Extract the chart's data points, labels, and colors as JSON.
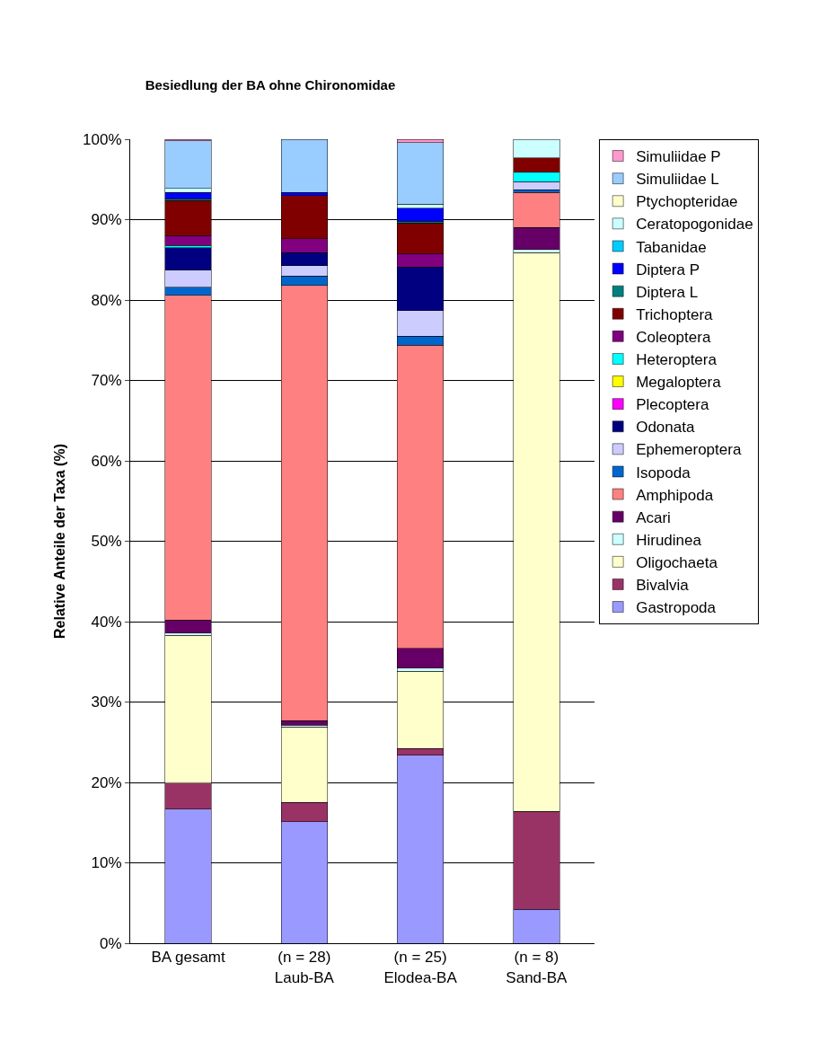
{
  "chart_data": {
    "type": "bar",
    "stacked": true,
    "title": "Besiedlung der BA ohne Chironomidae",
    "ylabel": "Relative Anteile der Taxa (%)",
    "categories": [
      "BA gesamt",
      "(n = 28)\nLaub-BA",
      "(n = 25)\nElodea-BA",
      "(n = 8)\nSand-BA"
    ],
    "series": [
      {
        "name": "Gastropoda",
        "color": "#9999ff",
        "values": [
          16.7,
          15.1,
          23.4,
          4.2
        ]
      },
      {
        "name": "Bivalvia",
        "color": "#993366",
        "values": [
          3.2,
          2.4,
          0.8,
          12.2
        ]
      },
      {
        "name": "Oligochaeta",
        "color": "#ffffcc",
        "values": [
          18.4,
          9.4,
          9.6,
          69.5
        ]
      },
      {
        "name": "Hirudinea",
        "color": "#ccffff",
        "values": [
          0.3,
          0.2,
          0.4,
          0.4
        ]
      },
      {
        "name": "Acari",
        "color": "#660066",
        "values": [
          1.6,
          0.6,
          2.5,
          2.7
        ]
      },
      {
        "name": "Amphipoda",
        "color": "#ff8080",
        "values": [
          40.4,
          54.1,
          37.7,
          4.4
        ]
      },
      {
        "name": "Isopoda",
        "color": "#0066cc",
        "values": [
          1.0,
          1.2,
          1.1,
          0.3
        ]
      },
      {
        "name": "Ephemeroptera",
        "color": "#ccccff",
        "values": [
          2.1,
          1.3,
          3.2,
          1.0
        ]
      },
      {
        "name": "Odonata",
        "color": "#000080",
        "values": [
          2.8,
          1.6,
          5.4,
          null
        ]
      },
      {
        "name": "Plecoptera",
        "color": "#ff00ff",
        "values": [
          null,
          null,
          null,
          null
        ]
      },
      {
        "name": "Megaloptera",
        "color": "#ffff00",
        "values": [
          null,
          null,
          null,
          null
        ]
      },
      {
        "name": "Heteroptera",
        "color": "#00ffff",
        "values": [
          0.3,
          null,
          null,
          1.2
        ]
      },
      {
        "name": "Coleoptera",
        "color": "#800080",
        "values": [
          1.2,
          1.7,
          1.7,
          null
        ]
      },
      {
        "name": "Trichoptera",
        "color": "#800000",
        "values": [
          4.4,
          5.4,
          3.8,
          1.8
        ]
      },
      {
        "name": "Diptera L",
        "color": "#008080",
        "values": [
          0.2,
          null,
          0.2,
          null
        ]
      },
      {
        "name": "Diptera P",
        "color": "#0000ff",
        "values": [
          0.8,
          0.4,
          1.6,
          null
        ]
      },
      {
        "name": "Tabanidae",
        "color": "#00ccff",
        "values": [
          null,
          null,
          null,
          null
        ]
      },
      {
        "name": "Ceratopogonidae",
        "color": "#ccffff",
        "values": [
          0.5,
          null,
          0.5,
          2.3
        ]
      },
      {
        "name": "Ptychopteridae",
        "color": "#ffffcc",
        "values": [
          null,
          null,
          null,
          null
        ]
      },
      {
        "name": "Simuliidae L",
        "color": "#99ccff",
        "values": [
          5.9,
          6.6,
          7.7,
          null
        ]
      },
      {
        "name": "Simuliidae P",
        "color": "#ff99cc",
        "values": [
          0.2,
          null,
          0.4,
          null
        ]
      }
    ],
    "ylim": [
      0,
      100
    ],
    "yticks": [
      {
        "value": 0,
        "label": "0%"
      },
      {
        "value": 10,
        "label": "10%"
      },
      {
        "value": 20,
        "label": "20%"
      },
      {
        "value": 30,
        "label": "30%"
      },
      {
        "value": 40,
        "label": "40%"
      },
      {
        "value": 50,
        "label": "50%"
      },
      {
        "value": 60,
        "label": "60%"
      },
      {
        "value": 70,
        "label": "70%"
      },
      {
        "value": 80,
        "label": "80%"
      },
      {
        "value": 90,
        "label": "90%"
      },
      {
        "value": 100,
        "label": "100%"
      }
    ],
    "grid": "y",
    "legend": "right"
  }
}
